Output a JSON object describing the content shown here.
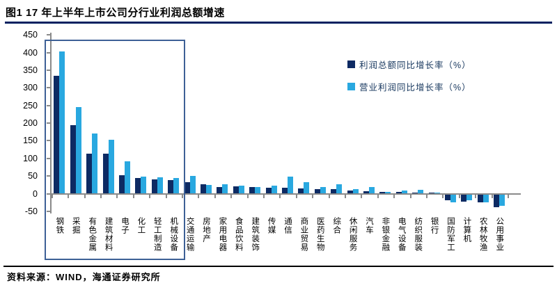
{
  "header": {
    "title": "图1  17 年上半年上市公司分行业利润总额增速"
  },
  "footer": {
    "source": "资料来源：WIND，海通证券研究所"
  },
  "legend": [
    {
      "label": "利润总额同比增长率（%）",
      "color": "#0d2a63"
    },
    {
      "label": "营业利润同比增长率（%）",
      "color": "#29a8e0"
    }
  ],
  "colors": {
    "title_rule": "#002060",
    "axis": "#8a8a8a",
    "highlight_box": "#3d6096",
    "legend_text": "#17375e",
    "series_dark": "#0d2a63",
    "series_light": "#29a8e0"
  },
  "chart_data": {
    "type": "bar",
    "title": "图1  17 年上半年上市公司分行业利润总额增速",
    "xlabel": "",
    "ylabel": "",
    "ylim": [
      -50,
      450
    ],
    "yticks": [
      450,
      400,
      350,
      300,
      250,
      200,
      150,
      100,
      50,
      0,
      -50
    ],
    "grid": false,
    "legend_position": "upper-right",
    "categories": [
      "钢铁",
      "采掘",
      "有色金属",
      "建筑材料",
      "电子",
      "化工",
      "轻工制造",
      "机械设备",
      "交通运输",
      "房地产",
      "家用电器",
      "食品饮料",
      "建筑装饰",
      "传媒",
      "通信",
      "商业贸易",
      "医药生物",
      "综合",
      "休闲服务",
      "汽车",
      "非银金融",
      "电气设备",
      "纺织服装",
      "银行",
      "国防军工",
      "计算机",
      "农林牧渔",
      "公用事业"
    ],
    "series": [
      {
        "name": "利润总额同比增长率（%）",
        "color": "#0d2a63",
        "values": [
          335,
          194,
          113,
          114,
          53,
          45,
          41,
          38,
          32,
          26,
          18,
          20,
          18,
          16,
          16,
          15,
          12,
          13,
          8,
          6,
          5,
          4,
          3,
          2,
          -19,
          -23,
          -25,
          -38
        ]
      },
      {
        "name": "营业利润同比增长率（%）",
        "color": "#29a8e0",
        "values": [
          404,
          245,
          171,
          153,
          92,
          48,
          46,
          45,
          51,
          24,
          27,
          23,
          19,
          23,
          48,
          32,
          18,
          27,
          13,
          18,
          4,
          9,
          11,
          2,
          -24,
          -18,
          -24,
          -35
        ]
      }
    ],
    "highlight_box": {
      "from_category": "钢铁",
      "to_category": "机械设备"
    }
  }
}
